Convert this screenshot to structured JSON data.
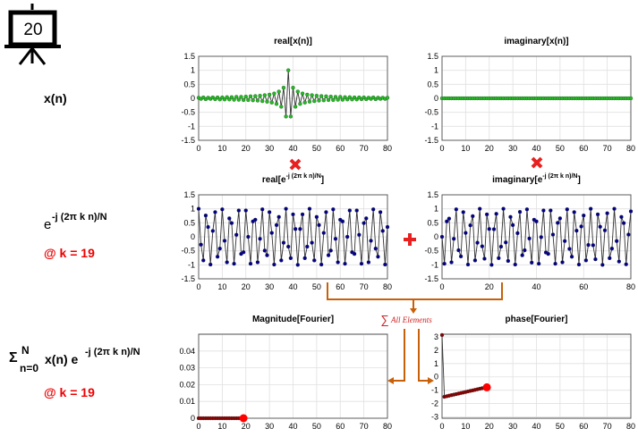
{
  "slide_number": "20",
  "left_labels": {
    "xn": "x(n)",
    "exp_base": "e",
    "exp_sup": "-j (2π k n)/N",
    "k_label": "@ k = 19",
    "sum_sigma": "Σ",
    "sum_upper": "N",
    "sum_lower": "n=0",
    "sum_term1": "x(n) e",
    "sum_sup": "-j (2π k n)/N",
    "k_label2": "@ k = 19"
  },
  "annotations": {
    "sum_symbol": "∑",
    "all_elements": "All Elements"
  },
  "colors": {
    "green_marker": "#22bb22",
    "blue_marker": "#00008b",
    "red_marker": "#ff0000",
    "stem_line": "#444444",
    "times_sign": "#e82020",
    "plus_sign": "#e82020",
    "arrow": "#c8600a",
    "k_label": "#ee0000"
  },
  "chart_data": [
    {
      "id": "real_x",
      "type": "line",
      "title": "real[x(n)]",
      "xlim": [
        0,
        80
      ],
      "ylim": [
        -1.5,
        1.5
      ],
      "xticks": [
        0,
        10,
        20,
        30,
        40,
        50,
        60,
        70,
        80
      ],
      "yticks": [
        1.5,
        1,
        0.5,
        0,
        -0.5,
        -1,
        -1.5
      ],
      "series": [
        {
          "marker": "green",
          "x": [
            0,
            1,
            2,
            3,
            4,
            5,
            6,
            7,
            8,
            9,
            10,
            11,
            12,
            13,
            14,
            15,
            16,
            17,
            18,
            19,
            20,
            21,
            22,
            23,
            24,
            25,
            26,
            27,
            28,
            29,
            30,
            31,
            32,
            33,
            34,
            35,
            36,
            37,
            38,
            39,
            40,
            41,
            42,
            43,
            44,
            45,
            46,
            47,
            48,
            49,
            50,
            51,
            52,
            53,
            54,
            55,
            56,
            57,
            58,
            59,
            60,
            61,
            62,
            63,
            64,
            65,
            66,
            67,
            68,
            69,
            70,
            71,
            72,
            73,
            74,
            75,
            76,
            77,
            78,
            79,
            80
          ],
          "y": [
            0.02,
            -0.02,
            0.03,
            -0.03,
            0.02,
            -0.02,
            0.03,
            -0.03,
            0.03,
            -0.04,
            0.03,
            -0.04,
            0.04,
            -0.04,
            0.04,
            -0.05,
            0.05,
            -0.05,
            0.05,
            -0.06,
            0.06,
            -0.06,
            0.07,
            -0.07,
            0.08,
            -0.08,
            0.09,
            -0.1,
            0.11,
            -0.12,
            0.13,
            -0.15,
            0.17,
            -0.2,
            0.24,
            -0.3,
            0.38,
            -0.65,
            1.0,
            -0.65,
            0.38,
            -0.3,
            0.24,
            -0.2,
            0.17,
            -0.15,
            0.13,
            -0.12,
            0.11,
            -0.1,
            0.09,
            -0.08,
            0.08,
            -0.07,
            0.07,
            -0.06,
            0.06,
            -0.06,
            0.05,
            -0.05,
            0.05,
            -0.05,
            0.04,
            -0.04,
            0.04,
            -0.04,
            0.03,
            -0.04,
            0.03,
            -0.03,
            0.03,
            -0.03,
            0.02,
            -0.02,
            0.03,
            -0.03,
            0.02,
            -0.02,
            0.02,
            -0.02,
            0.02
          ]
        }
      ]
    },
    {
      "id": "imag_x",
      "type": "line",
      "title": "imaginary[x(n)]",
      "xlim": [
        0,
        80
      ],
      "ylim": [
        -1.5,
        1.5
      ],
      "xticks": [
        0,
        10,
        20,
        30,
        40,
        50,
        60,
        70,
        80
      ],
      "yticks": [
        1.5,
        1,
        0.5,
        0,
        -0.5,
        -1,
        -1.5
      ],
      "series": [
        {
          "marker": "green",
          "x": [
            0,
            1,
            2,
            3,
            4,
            5,
            6,
            7,
            8,
            9,
            10,
            11,
            12,
            13,
            14,
            15,
            16,
            17,
            18,
            19,
            20,
            21,
            22,
            23,
            24,
            25,
            26,
            27,
            28,
            29,
            30,
            31,
            32,
            33,
            34,
            35,
            36,
            37,
            38,
            39,
            40,
            41,
            42,
            43,
            44,
            45,
            46,
            47,
            48,
            49,
            50,
            51,
            52,
            53,
            54,
            55,
            56,
            57,
            58,
            59,
            60,
            61,
            62,
            63,
            64,
            65,
            66,
            67,
            68,
            69,
            70,
            71,
            72,
            73,
            74,
            75,
            76,
            77,
            78,
            79,
            80
          ],
          "y": [
            0,
            0,
            0,
            0,
            0,
            0,
            0,
            0,
            0,
            0,
            0,
            0,
            0,
            0,
            0,
            0,
            0,
            0,
            0,
            0,
            0,
            0,
            0,
            0,
            0,
            0,
            0,
            0,
            0,
            0,
            0,
            0,
            0,
            0,
            0,
            0,
            0,
            0,
            0,
            0,
            0,
            0,
            0,
            0,
            0,
            0,
            0,
            0,
            0,
            0,
            0,
            0,
            0,
            0,
            0,
            0,
            0,
            0,
            0,
            0,
            0,
            0,
            0,
            0,
            0,
            0,
            0,
            0,
            0,
            0,
            0,
            0,
            0,
            0,
            0,
            0,
            0,
            0,
            0,
            0,
            0
          ]
        }
      ]
    },
    {
      "id": "real_e",
      "type": "line",
      "title_base": "real[e",
      "title_sup": "-j (2π k n)/N",
      "title_end": "]",
      "xlim": [
        0,
        80
      ],
      "ylim": [
        -1.5,
        1.5
      ],
      "xticks": [
        0,
        10,
        20,
        30,
        40,
        50,
        60,
        70,
        80
      ],
      "yticks": [
        1.5,
        1,
        0.5,
        0,
        -0.5,
        -1,
        -1.5
      ],
      "series": [
        {
          "marker": "blue",
          "x": [
            0,
            1,
            2,
            3,
            4,
            5,
            6,
            7,
            8,
            9,
            10,
            11,
            12,
            13,
            14,
            15,
            16,
            17,
            18,
            19,
            20,
            21,
            22,
            23,
            24,
            25,
            26,
            27,
            28,
            29,
            30,
            31,
            32,
            33,
            34,
            35,
            36,
            37,
            38,
            39,
            40,
            41,
            42,
            43,
            44,
            45,
            46,
            47,
            48,
            49,
            50,
            51,
            52,
            53,
            54,
            55,
            56,
            57,
            58,
            59,
            60,
            61,
            62,
            63,
            64,
            65,
            66,
            67,
            68,
            69,
            70,
            71,
            72,
            73,
            74,
            75,
            76,
            77,
            78,
            79,
            80
          ],
          "y": [
            1.0,
            -0.28,
            -0.84,
            0.76,
            0.35,
            -0.99,
            0.21,
            0.88,
            -0.71,
            -0.42,
            0.98,
            -0.14,
            -0.91,
            0.66,
            0.49,
            -0.96,
            0.07,
            0.94,
            -0.61,
            -0.55,
            0.94,
            0.0,
            -0.96,
            0.55,
            0.61,
            -0.91,
            -0.07,
            0.98,
            -0.49,
            -0.66,
            0.88,
            0.14,
            -0.99,
            0.42,
            0.71,
            -0.84,
            -0.21,
            1.0,
            -0.35,
            -0.76,
            0.8,
            0.28,
            -1.0,
            0.28,
            0.8,
            -0.76,
            -0.35,
            1.0,
            -0.21,
            -0.84,
            0.71,
            0.42,
            -0.99,
            0.14,
            0.88,
            -0.66,
            -0.49,
            0.98,
            -0.07,
            -0.91,
            0.61,
            0.55,
            -0.96,
            0.0,
            0.94,
            -0.55,
            -0.61,
            0.94,
            0.07,
            -0.96,
            0.49,
            0.66,
            -0.91,
            -0.14,
            0.98,
            -0.42,
            -0.71,
            0.88,
            0.21,
            -0.99,
            0.35
          ]
        }
      ]
    },
    {
      "id": "imag_e",
      "type": "line",
      "title_base": "imaginary[e",
      "title_sup": "-j (2π k n)/N",
      "title_end": "]",
      "xlim": [
        0,
        80
      ],
      "ylim": [
        -1.5,
        1.5
      ],
      "xticks": [
        0,
        20,
        40,
        60,
        80
      ],
      "yticks": [
        1.5,
        1,
        0.5,
        0,
        -0.5,
        -1,
        -1.5
      ],
      "series": [
        {
          "marker": "blue",
          "x": [
            0,
            1,
            2,
            3,
            4,
            5,
            6,
            7,
            8,
            9,
            10,
            11,
            12,
            13,
            14,
            15,
            16,
            17,
            18,
            19,
            20,
            21,
            22,
            23,
            24,
            25,
            26,
            27,
            28,
            29,
            30,
            31,
            32,
            33,
            34,
            35,
            36,
            37,
            38,
            39,
            40,
            41,
            42,
            43,
            44,
            45,
            46,
            47,
            48,
            49,
            50,
            51,
            52,
            53,
            54,
            55,
            56,
            57,
            58,
            59,
            60,
            61,
            62,
            63,
            64,
            65,
            66,
            67,
            68,
            69,
            70,
            71,
            72,
            73,
            74,
            75,
            76,
            77,
            78,
            79,
            80
          ],
          "y": [
            0.0,
            -0.96,
            0.55,
            0.65,
            -0.91,
            -0.07,
            0.98,
            -0.48,
            -0.7,
            0.88,
            0.14,
            -0.99,
            0.41,
            0.74,
            -0.84,
            -0.21,
            1.0,
            -0.34,
            -0.78,
            0.8,
            0.28,
            -1.0,
            0.27,
            0.82,
            -0.76,
            -0.35,
            1.0,
            -0.2,
            -0.86,
            0.71,
            0.42,
            -0.99,
            0.13,
            0.89,
            -0.66,
            -0.48,
            0.98,
            -0.06,
            -0.92,
            0.61,
            0.55,
            -0.96,
            -0.01,
            0.94,
            -0.56,
            -0.61,
            0.94,
            0.08,
            -0.96,
            0.5,
            0.66,
            -0.91,
            -0.15,
            0.98,
            -0.43,
            -0.71,
            0.88,
            0.22,
            -0.99,
            0.37,
            0.76,
            -0.84,
            -0.29,
            1.0,
            -0.3,
            -0.8,
            0.8,
            0.36,
            -1.0,
            0.23,
            0.84,
            -0.76,
            -0.42,
            1.0,
            -0.15,
            -0.88,
            0.71,
            0.49,
            -0.98,
            0.08,
            0.91
          ]
        }
      ]
    },
    {
      "id": "magnitude",
      "type": "line",
      "title": "Magnitude[Fourier]",
      "xlim": [
        0,
        80
      ],
      "ylim": [
        0,
        0.05
      ],
      "xticks": [
        0,
        10,
        20,
        30,
        40,
        50,
        60,
        70,
        80
      ],
      "yticks": [
        0.04,
        0.03,
        0.02,
        0.01,
        0
      ],
      "ytick_labels": [
        "0.04",
        "0.03",
        "0.02",
        "0.01",
        "0"
      ],
      "series": [
        {
          "marker": "darkred",
          "x": [
            0,
            1,
            2,
            3,
            4,
            5,
            6,
            7,
            8,
            9,
            10,
            11,
            12,
            13,
            14,
            15,
            16,
            17,
            18,
            19
          ],
          "y": [
            0,
            0,
            0,
            0,
            0,
            0,
            0,
            0,
            0,
            0,
            0,
            0,
            0,
            0,
            0,
            0,
            0,
            0,
            0,
            0
          ]
        }
      ],
      "highlight": {
        "x": 19,
        "y": 0
      }
    },
    {
      "id": "phase",
      "type": "line",
      "title": "phase[Fourier]",
      "xlim": [
        0,
        80
      ],
      "ylim": [
        -3.1,
        3.2
      ],
      "xticks": [
        0,
        10,
        20,
        30,
        40,
        50,
        60,
        70,
        80
      ],
      "yticks": [
        3,
        2,
        1,
        0,
        -1,
        -2,
        -3
      ],
      "series": [
        {
          "marker": "darkred",
          "x": [
            0,
            1,
            2,
            3,
            4,
            5,
            6,
            7,
            8,
            9,
            10,
            11,
            12,
            13,
            14,
            15,
            16,
            17,
            18,
            19
          ],
          "y": [
            3.14,
            -1.49,
            -1.45,
            -1.41,
            -1.37,
            -1.33,
            -1.29,
            -1.25,
            -1.21,
            -1.17,
            -1.13,
            -1.09,
            -1.05,
            -1.01,
            -0.97,
            -0.93,
            -0.89,
            -0.85,
            -0.81,
            -0.78
          ]
        }
      ],
      "highlight": {
        "x": 19,
        "y": -0.78
      }
    }
  ]
}
